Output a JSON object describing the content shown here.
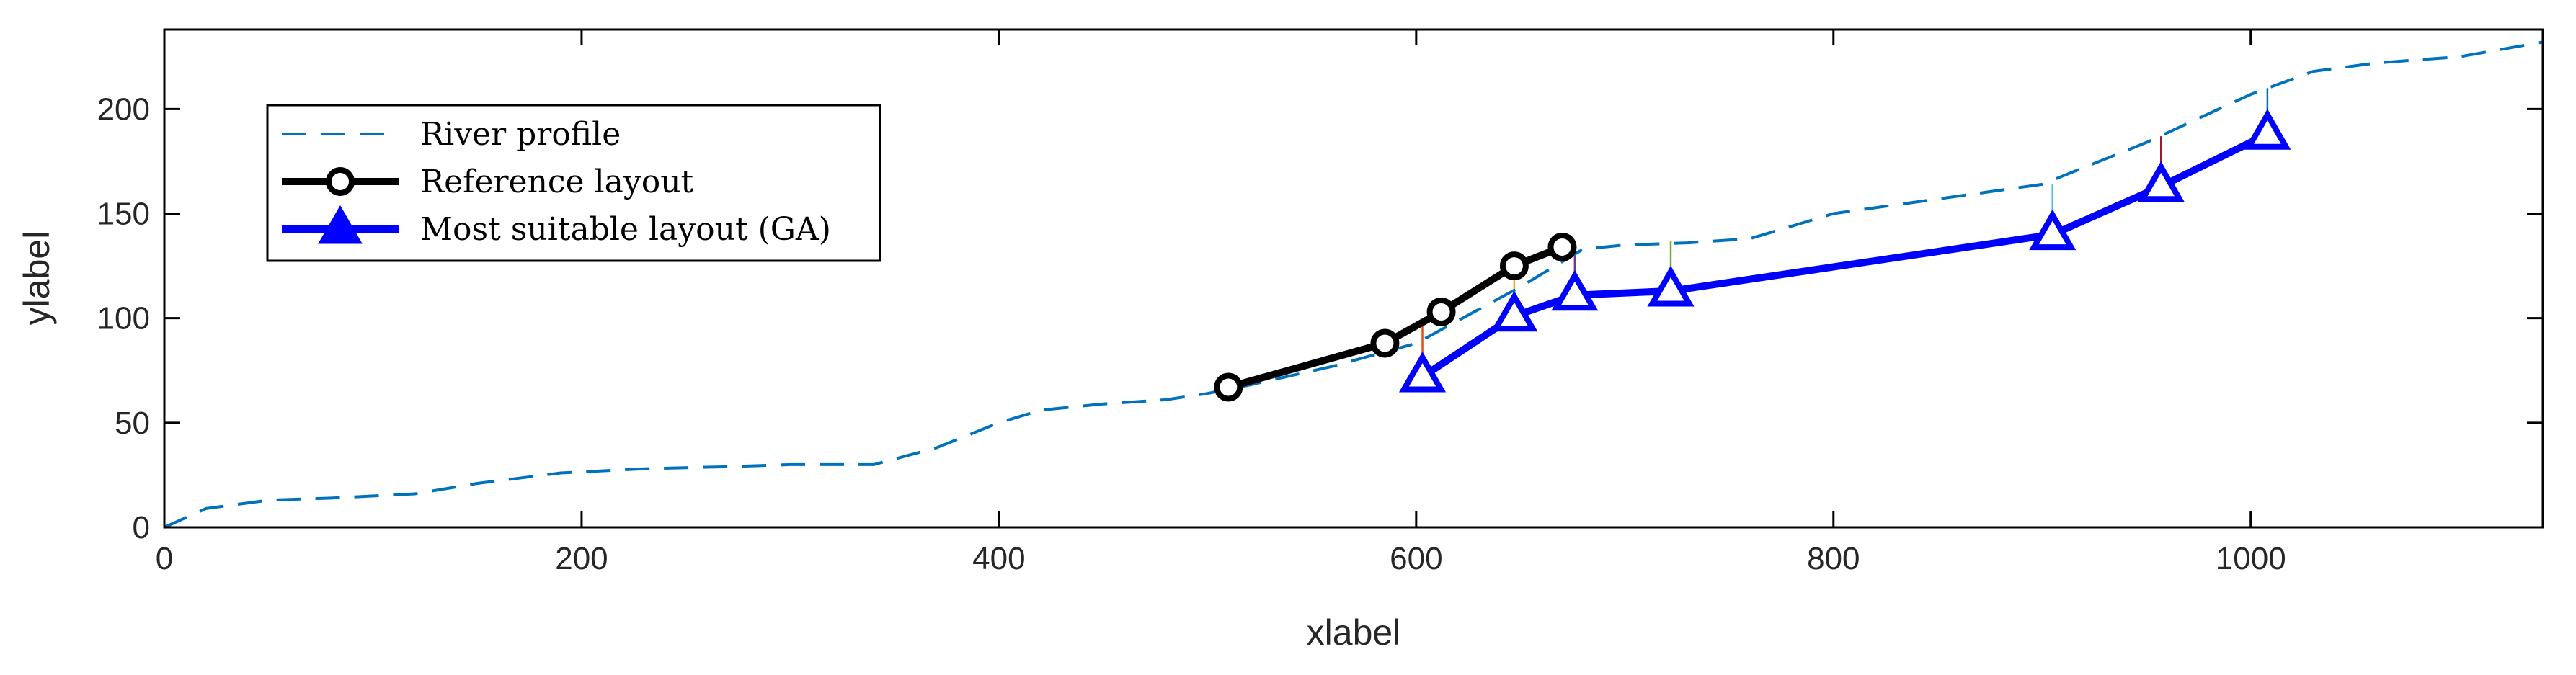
{
  "chart_data": {
    "type": "line",
    "title": "",
    "xlabel": "xlabel",
    "ylabel": "ylabel",
    "xlim": [
      0,
      1140
    ],
    "ylim": [
      0,
      238
    ],
    "xticks": [
      0,
      200,
      400,
      600,
      800,
      1000
    ],
    "yticks": [
      0,
      50,
      100,
      150,
      200
    ],
    "grid": false,
    "legend_placement": "top-left",
    "series": [
      {
        "name": "River profile",
        "style": "dashed",
        "color": "#0072BD",
        "marker": "none",
        "x": [
          0,
          20,
          50,
          80,
          120,
          150,
          190,
          230,
          270,
          300,
          340,
          370,
          400,
          420,
          450,
          480,
          500,
          520,
          560,
          600,
          650,
          680,
          700,
          730,
          760,
          800,
          850,
          900,
          950,
          1000,
          1030,
          1060,
          1100,
          1140
        ],
        "y": [
          0,
          9,
          13,
          14,
          16,
          21,
          26,
          28,
          29,
          30,
          30,
          38,
          50,
          56,
          59,
          61,
          64,
          68,
          77,
          88,
          115,
          133,
          135,
          136,
          138,
          150,
          157,
          164,
          184,
          207,
          218,
          222,
          225,
          232
        ]
      },
      {
        "name": "Reference layout",
        "style": "solid",
        "color": "#000000",
        "marker": "circle",
        "x": [
          510,
          585,
          612,
          647,
          670
        ],
        "y": [
          67,
          88,
          103,
          125,
          134
        ]
      },
      {
        "name": "Most suitable layout (GA)",
        "style": "solid",
        "color": "#0000FF",
        "marker": "triangle",
        "x": [
          603,
          647,
          676,
          722,
          905,
          957,
          1008
        ],
        "y": [
          72,
          101,
          111,
          113,
          140,
          163,
          188
        ]
      }
    ],
    "connectors": [
      {
        "x": 603,
        "y_top": 97,
        "color": "#D95319"
      },
      {
        "x": 647,
        "y_top": 125,
        "color": "#EDB120"
      },
      {
        "x": 676,
        "y_top": 136,
        "color": "#7E2F8E"
      },
      {
        "x": 722,
        "y_top": 137,
        "color": "#77AC30"
      },
      {
        "x": 905,
        "y_top": 164,
        "color": "#4DBEEE"
      },
      {
        "x": 957,
        "y_top": 187,
        "color": "#A2142F"
      },
      {
        "x": 1008,
        "y_top": 210,
        "color": "#0072BD"
      }
    ]
  }
}
